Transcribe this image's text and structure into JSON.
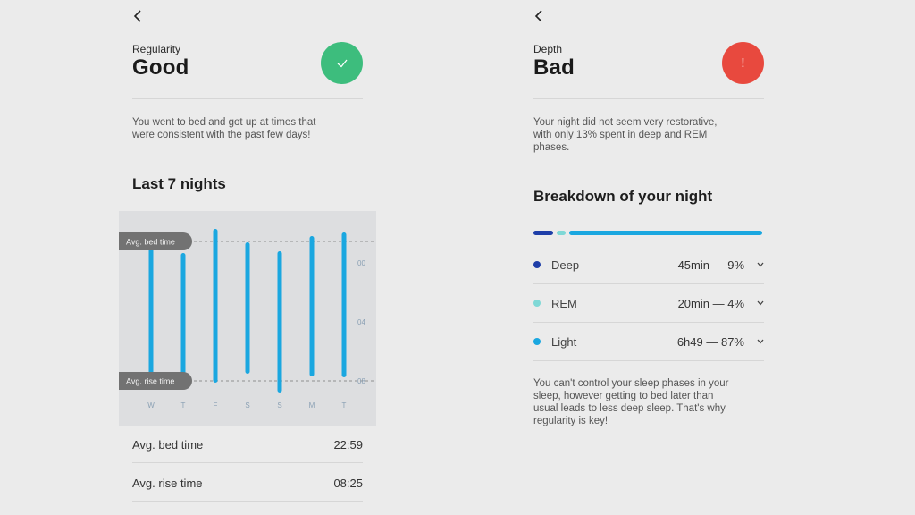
{
  "regularity": {
    "eyebrow": "Regularity",
    "rating": "Good",
    "status_icon": "check-icon",
    "status_color": "#3dbd7d",
    "description_line1": "You went to bed and got up at times that",
    "description_line2": "were consistent with the past few days!",
    "section_title": "Last 7 nights",
    "chart": {
      "days": [
        "W",
        "T",
        "F",
        "S",
        "S",
        "M",
        "T"
      ],
      "hour_ticks": [
        "00",
        "04",
        "08"
      ],
      "avg_bed_label": "Avg. bed time",
      "avg_rise_label": "Avg. rise time",
      "bar_color": "#1aa7e0"
    },
    "stats": [
      {
        "label": "Avg. bed time",
        "value": "22:59"
      },
      {
        "label": "Avg. rise time",
        "value": "08:25"
      }
    ]
  },
  "depth": {
    "eyebrow": "Depth",
    "rating": "Bad",
    "status_icon": "exclamation-icon",
    "status_glyph": "!",
    "status_color": "#e8493e",
    "description_line1": "Your night did not seem very restorative,",
    "description_line2": "with only 13% spent in deep and REM",
    "description_line3": "phases.",
    "section_title": "Breakdown of your night",
    "phases": [
      {
        "name": "Deep",
        "value": "45min — 9%",
        "percent": 9,
        "color": "#1e3ea8"
      },
      {
        "name": "REM",
        "value": "20min — 4%",
        "percent": 4,
        "color": "#7fd8d6"
      },
      {
        "name": "Light",
        "value": "6h49 — 87%",
        "percent": 87,
        "color": "#1aa7e0"
      }
    ],
    "footer_line1": "You can't control your sleep phases in your",
    "footer_line2": "sleep, however getting to bed later than",
    "footer_line3": "usual leads to less deep sleep. That's why",
    "footer_line4": "regularity is key!"
  }
}
